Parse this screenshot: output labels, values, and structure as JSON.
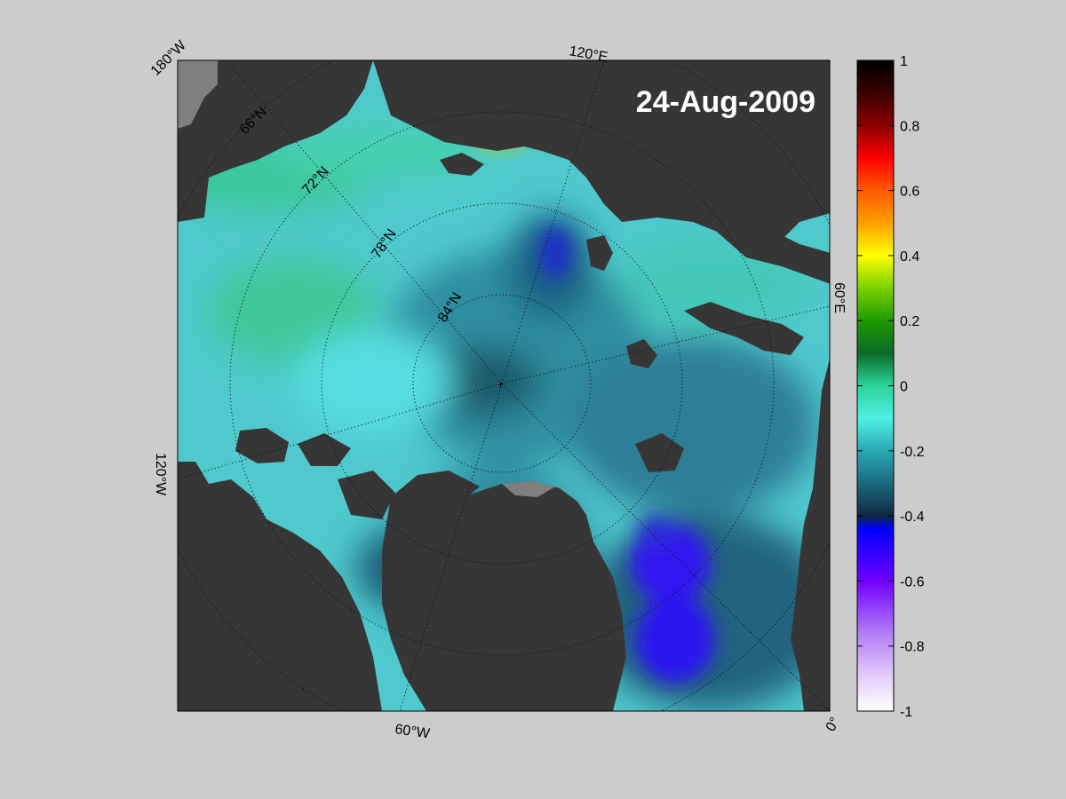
{
  "map": {
    "date_label": "24-Aug-2009",
    "lon_labels": {
      "w180": "180°W",
      "e120": "120°E",
      "e60": "60°E",
      "w120": "120°W",
      "w60": "60°W",
      "zero": "0°"
    },
    "lat_labels": {
      "n66": "66°N",
      "n72": "72°N",
      "n78": "78°N",
      "n84": "84°N"
    },
    "colors": {
      "land": "#363636",
      "ice_shelf": "#7f7f7f",
      "background": "#cccccc"
    }
  },
  "colorbar": {
    "ticks": [
      "1",
      "0.8",
      "0.6",
      "0.4",
      "0.2",
      "0",
      "-0.2",
      "-0.4",
      "-0.6",
      "-0.8",
      "-1"
    ],
    "min": -1,
    "max": 1
  }
}
